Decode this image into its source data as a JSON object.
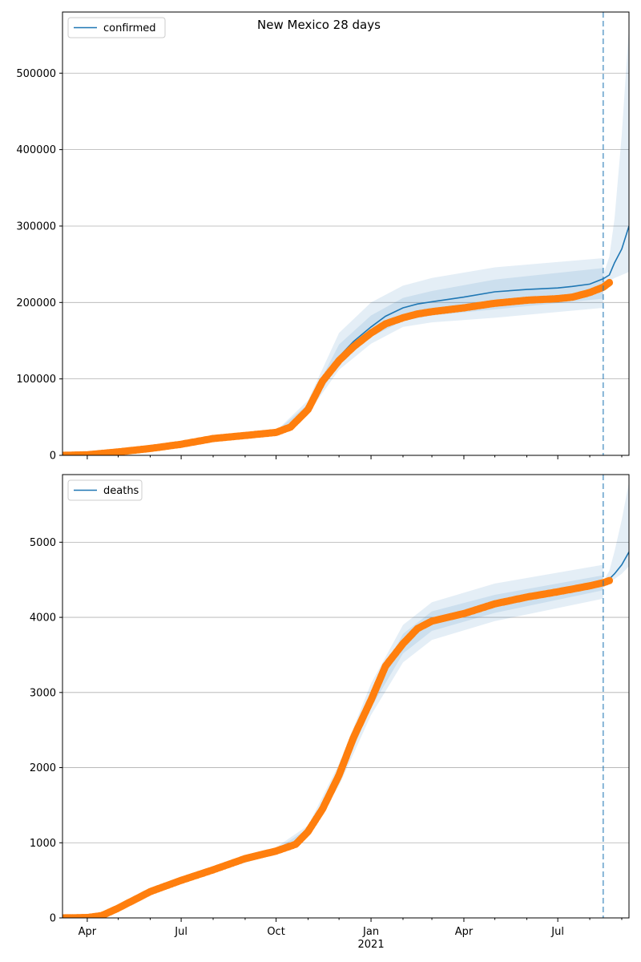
{
  "figure": {
    "title": "New Mexico 28 days"
  },
  "colors": {
    "fit_line": "#1f77b4",
    "observed": "#ff7f0e",
    "band": "#1f77b4",
    "vline": "#1f77b4",
    "grid": "#b0b0b0"
  },
  "chart_data": [
    {
      "type": "line",
      "legend": "confirmed",
      "legend_position": "top-left",
      "grid": "horizontal",
      "x_tick_labels": [
        "Apr",
        "Jul",
        "Oct",
        "Jan",
        "Apr",
        "Jul"
      ],
      "x_year_label": "2021",
      "x_range": [
        "2020-03-08",
        "2021-09-08"
      ],
      "vertical_marker_date": "2021-08-14",
      "ylim": [
        0,
        580000
      ],
      "yticks": [
        0,
        100000,
        200000,
        300000,
        400000,
        500000
      ],
      "series": [
        {
          "name": "confirmed",
          "kind": "fit",
          "x": [
            "2020-03-08",
            "2020-04-01",
            "2020-05-01",
            "2020-06-01",
            "2020-07-01",
            "2020-08-01",
            "2020-09-01",
            "2020-10-01",
            "2020-10-15",
            "2020-11-01",
            "2020-11-15",
            "2020-12-01",
            "2020-12-15",
            "2021-01-01",
            "2021-01-15",
            "2021-02-01",
            "2021-02-15",
            "2021-03-01",
            "2021-04-01",
            "2021-05-01",
            "2021-06-01",
            "2021-07-01",
            "2021-07-15",
            "2021-08-01",
            "2021-08-14",
            "2021-08-20",
            "2021-08-25",
            "2021-09-01",
            "2021-09-08"
          ],
          "y": [
            0,
            1000,
            5000,
            9500,
            15000,
            23000,
            27000,
            31000,
            38000,
            62000,
            100000,
            129000,
            149000,
            168000,
            182000,
            193000,
            198000,
            201000,
            207000,
            214000,
            217000,
            219000,
            221000,
            224000,
            231000,
            236000,
            252000,
            270000,
            300000
          ]
        },
        {
          "name": "observed",
          "kind": "points",
          "x": [
            "2020-03-08",
            "2020-04-01",
            "2020-05-01",
            "2020-06-01",
            "2020-07-01",
            "2020-08-01",
            "2020-09-01",
            "2020-10-01",
            "2020-10-15",
            "2020-11-01",
            "2020-11-15",
            "2020-12-01",
            "2020-12-15",
            "2021-01-01",
            "2021-01-15",
            "2021-02-01",
            "2021-02-15",
            "2021-03-01",
            "2021-04-01",
            "2021-05-01",
            "2021-06-01",
            "2021-07-01",
            "2021-07-15",
            "2021-08-01",
            "2021-08-14",
            "2021-08-20"
          ],
          "y": [
            0,
            700,
            4500,
            9000,
            14500,
            22000,
            26000,
            30000,
            37000,
            60000,
            97000,
            124000,
            142000,
            160000,
            172000,
            180000,
            185000,
            188000,
            193000,
            199000,
            203000,
            205000,
            207000,
            213000,
            220000,
            226000
          ]
        }
      ],
      "bands": [
        {
          "x": [
            "2020-10-01",
            "2020-11-01",
            "2020-12-01",
            "2021-01-01",
            "2021-02-01",
            "2021-03-01",
            "2021-05-01",
            "2021-08-14"
          ],
          "low": [
            30000,
            55000,
            112000,
            146000,
            168000,
            174000,
            180000,
            193000
          ],
          "high": [
            32000,
            72000,
            160000,
            200000,
            222000,
            232000,
            246000,
            258000
          ]
        },
        {
          "x": [
            "2020-10-01",
            "2020-11-01",
            "2020-12-01",
            "2021-01-01",
            "2021-02-01",
            "2021-03-01",
            "2021-05-01",
            "2021-08-14"
          ],
          "low": [
            30500,
            58000,
            120000,
            155000,
            176000,
            183000,
            191000,
            205000
          ],
          "high": [
            31500,
            67000,
            145000,
            183000,
            206000,
            215000,
            230000,
            245000
          ]
        },
        {
          "x": [
            "2021-08-14",
            "2021-08-20",
            "2021-08-25",
            "2021-09-01",
            "2021-09-08"
          ],
          "low": [
            225000,
            228000,
            232000,
            236000,
            240000
          ],
          "high": [
            236000,
            260000,
            310000,
            420000,
            560000
          ]
        }
      ]
    },
    {
      "type": "line",
      "legend": "deaths",
      "legend_position": "top-left",
      "grid": "horizontal",
      "x_tick_labels": [
        "Apr",
        "Jul",
        "Oct",
        "Jan",
        "Apr",
        "Jul"
      ],
      "x_year_label": "2021",
      "x_range": [
        "2020-03-08",
        "2021-09-08"
      ],
      "vertical_marker_date": "2021-08-14",
      "ylim": [
        0,
        5900
      ],
      "yticks": [
        0,
        1000,
        2000,
        3000,
        4000,
        5000
      ],
      "series": [
        {
          "name": "deaths",
          "kind": "fit",
          "x": [
            "2020-03-08",
            "2020-04-01",
            "2020-04-15",
            "2020-05-01",
            "2020-06-01",
            "2020-07-01",
            "2020-08-01",
            "2020-09-01",
            "2020-10-01",
            "2020-10-20",
            "2020-11-01",
            "2020-11-15",
            "2020-12-01",
            "2020-12-15",
            "2021-01-01",
            "2021-01-15",
            "2021-02-01",
            "2021-02-15",
            "2021-03-01",
            "2021-04-01",
            "2021-05-01",
            "2021-06-01",
            "2021-07-01",
            "2021-08-01",
            "2021-08-14",
            "2021-08-20",
            "2021-08-25",
            "2021-09-01",
            "2021-09-08"
          ],
          "y": [
            0,
            5,
            30,
            130,
            350,
            500,
            640,
            790,
            890,
            980,
            1150,
            1450,
            1900,
            2400,
            2900,
            3350,
            3650,
            3850,
            3950,
            4050,
            4180,
            4270,
            4340,
            4420,
            4460,
            4510,
            4580,
            4700,
            4870
          ]
        },
        {
          "name": "observed",
          "kind": "points",
          "x": [
            "2020-03-08",
            "2020-04-01",
            "2020-04-15",
            "2020-05-01",
            "2020-06-01",
            "2020-07-01",
            "2020-08-01",
            "2020-09-01",
            "2020-10-01",
            "2020-10-20",
            "2020-11-01",
            "2020-11-15",
            "2020-12-01",
            "2020-12-15",
            "2021-01-01",
            "2021-01-15",
            "2021-02-01",
            "2021-02-15",
            "2021-03-01",
            "2021-04-01",
            "2021-05-01",
            "2021-06-01",
            "2021-07-01",
            "2021-08-01",
            "2021-08-14",
            "2021-08-20"
          ],
          "y": [
            0,
            5,
            30,
            130,
            350,
            500,
            640,
            790,
            890,
            980,
            1150,
            1450,
            1900,
            2400,
            2900,
            3350,
            3650,
            3850,
            3950,
            4050,
            4180,
            4270,
            4340,
            4420,
            4460,
            4490
          ]
        }
      ],
      "bands": [
        {
          "x": [
            "2020-08-01",
            "2020-10-01",
            "2020-11-01",
            "2020-12-01",
            "2021-01-01",
            "2021-02-01",
            "2021-03-01",
            "2021-05-01",
            "2021-08-14"
          ],
          "low": [
            610,
            850,
            1080,
            1760,
            2700,
            3400,
            3700,
            3950,
            4250
          ],
          "high": [
            670,
            940,
            1230,
            2050,
            3120,
            3900,
            4200,
            4450,
            4700
          ]
        },
        {
          "x": [
            "2020-08-01",
            "2020-10-01",
            "2020-11-01",
            "2020-12-01",
            "2021-01-01",
            "2021-02-01",
            "2021-03-01",
            "2021-05-01",
            "2021-08-14"
          ],
          "low": [
            625,
            870,
            1110,
            1830,
            2800,
            3520,
            3820,
            4060,
            4360
          ],
          "high": [
            655,
            910,
            1190,
            1970,
            3010,
            3780,
            4080,
            4300,
            4560
          ]
        },
        {
          "x": [
            "2021-08-14",
            "2021-08-20",
            "2021-08-25",
            "2021-09-01",
            "2021-09-08"
          ],
          "low": [
            4440,
            4470,
            4510,
            4580,
            4680
          ],
          "high": [
            4480,
            4620,
            4880,
            5300,
            5800
          ]
        }
      ]
    }
  ]
}
